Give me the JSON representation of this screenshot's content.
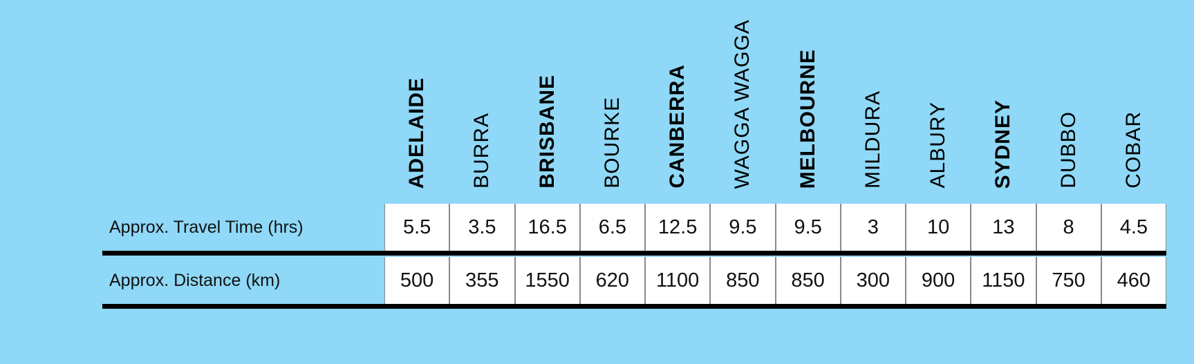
{
  "columns": [
    {
      "name": "ADELAIDE",
      "bold": true
    },
    {
      "name": "BURRA",
      "bold": false
    },
    {
      "name": "BRISBANE",
      "bold": true
    },
    {
      "name": "BOURKE",
      "bold": false
    },
    {
      "name": "CANBERRA",
      "bold": true
    },
    {
      "name": "WAGGA WAGGA",
      "bold": false
    },
    {
      "name": "MELBOURNE",
      "bold": true
    },
    {
      "name": "MILDURA",
      "bold": false
    },
    {
      "name": "ALBURY",
      "bold": false
    },
    {
      "name": "SYDNEY",
      "bold": true
    },
    {
      "name": "DUBBO",
      "bold": false
    },
    {
      "name": "COBAR",
      "bold": false
    }
  ],
  "rows": [
    {
      "label": "Approx. Travel Time (hrs)",
      "values": [
        5.5,
        3.5,
        16.5,
        6.5,
        12.5,
        9.5,
        9.5,
        3,
        10,
        13,
        8,
        4.5
      ]
    },
    {
      "label": "Approx. Distance (km)",
      "values": [
        500,
        355,
        1550,
        620,
        1100,
        850,
        850,
        300,
        900,
        1150,
        750,
        460
      ]
    }
  ]
}
